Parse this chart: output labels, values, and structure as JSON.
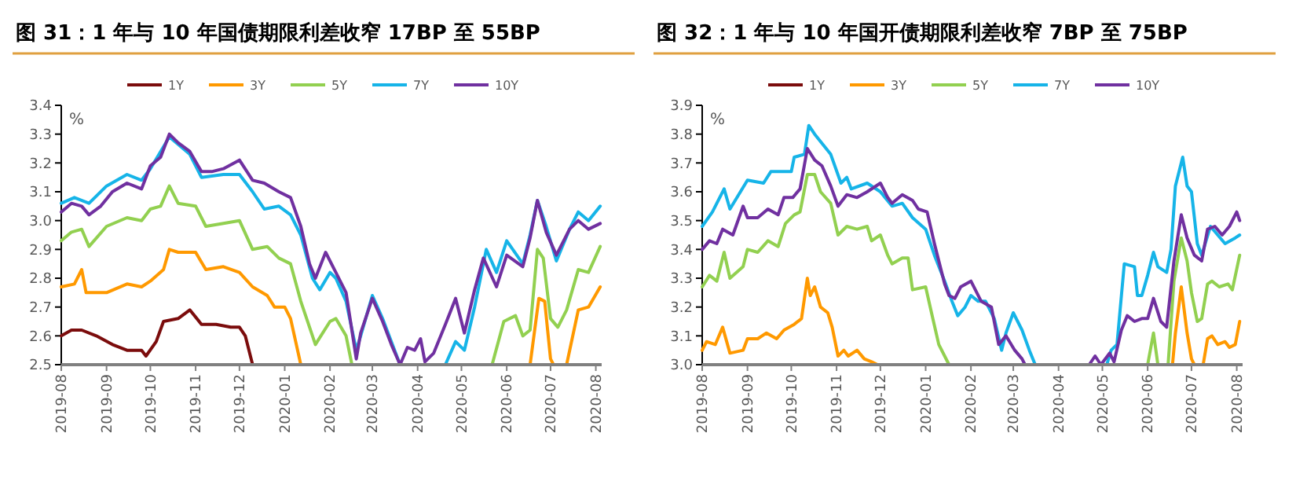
{
  "chart_data": [
    {
      "type": "line",
      "title": "图 31：1 年与 10 年国债期限利差收窄 17BP 至 55BP",
      "ylabel": "%",
      "legend": "top",
      "xlim": [
        "2019-08-01",
        "2020-08-05"
      ],
      "xticks": [
        "2019-08",
        "2019-09",
        "2019-10",
        "2019-11",
        "2019-12",
        "2020-01",
        "2020-02",
        "2020-03",
        "2020-04",
        "2020-05",
        "2020-06",
        "2020-07",
        "2020-08"
      ],
      "ylim": [
        2.5,
        3.4
      ],
      "yticks": [
        2.5,
        2.6,
        2.7,
        2.8,
        2.9,
        {
          "value": 3.0,
          "label": "3.0"
        },
        3.1,
        3.2,
        3.3,
        3.4
      ],
      "series": [
        {
          "name": "1Y",
          "color": "#7b0c0c",
          "x": [
            "2019-08-01",
            "2019-08-08",
            "2019-08-15",
            "2019-08-25",
            "2019-09-05",
            "2019-09-15",
            "2019-09-25",
            "2019-09-28",
            "2019-10-05",
            "2019-10-10",
            "2019-10-20",
            "2019-10-28",
            "2019-11-05",
            "2019-11-15",
            "2019-11-25",
            "2019-12-01",
            "2019-12-05",
            "2019-12-10"
          ],
          "values": [
            2.6,
            2.62,
            2.62,
            2.6,
            2.57,
            2.55,
            2.55,
            2.53,
            2.58,
            2.65,
            2.66,
            2.69,
            2.64,
            2.64,
            2.63,
            2.63,
            2.6,
            2.5
          ]
        },
        {
          "name": "3Y",
          "color": "#ff9900",
          "x": [
            "2019-08-01",
            "2019-08-10",
            "2019-08-15",
            "2019-08-18",
            "2019-09-01",
            "2019-09-15",
            "2019-09-25",
            "2019-10-01",
            "2019-10-10",
            "2019-10-14",
            "2019-10-20",
            "2019-11-01",
            "2019-11-08",
            "2019-11-20",
            "2019-12-01",
            "2019-12-10",
            "2019-12-20",
            "2019-12-25",
            "2020-01-01",
            "2020-01-05",
            "2020-01-12",
            "2020-03-15",
            "2020-06-17",
            "2020-06-23",
            "2020-06-27",
            "2020-07-01",
            "2020-07-03",
            "2020-07-07",
            "2020-07-12",
            "2020-07-20",
            "2020-07-27",
            "2020-08-04"
          ],
          "values": [
            2.77,
            2.78,
            2.83,
            2.75,
            2.75,
            2.78,
            2.77,
            2.79,
            2.83,
            2.9,
            2.89,
            2.89,
            2.83,
            2.84,
            2.82,
            2.77,
            2.74,
            2.7,
            2.7,
            2.66,
            2.5,
            null,
            2.5,
            2.73,
            2.72,
            2.52,
            2.5,
            null,
            2.5,
            2.69,
            2.7,
            2.77
          ]
        },
        {
          "name": "5Y",
          "color": "#92d050",
          "x": [
            "2019-08-01",
            "2019-08-08",
            "2019-08-15",
            "2019-08-20",
            "2019-09-01",
            "2019-09-15",
            "2019-09-25",
            "2019-10-01",
            "2019-10-08",
            "2019-10-14",
            "2019-10-20",
            "2019-11-01",
            "2019-11-08",
            "2019-11-20",
            "2019-12-01",
            "2019-12-10",
            "2019-12-20",
            "2019-12-28",
            "2020-01-05",
            "2020-01-12",
            "2020-01-22",
            "2020-02-01",
            "2020-02-05",
            "2020-02-12",
            "2020-02-16",
            "2020-04-01",
            "2020-05-22",
            "2020-05-30",
            "2020-06-07",
            "2020-06-12",
            "2020-06-17",
            "2020-06-22",
            "2020-06-26",
            "2020-07-01",
            "2020-07-06",
            "2020-07-12",
            "2020-07-20",
            "2020-07-27",
            "2020-08-04"
          ],
          "values": [
            2.93,
            2.96,
            2.97,
            2.91,
            2.98,
            3.01,
            3.0,
            3.04,
            3.05,
            3.12,
            3.06,
            3.05,
            2.98,
            2.99,
            3.0,
            2.9,
            2.91,
            2.87,
            2.85,
            2.72,
            2.57,
            2.65,
            2.66,
            2.6,
            2.5,
            null,
            2.5,
            2.65,
            2.67,
            2.6,
            2.62,
            2.9,
            2.87,
            2.66,
            2.63,
            2.69,
            2.83,
            2.82,
            2.91
          ]
        },
        {
          "name": "7Y",
          "color": "#16b4e8",
          "x": [
            "2019-08-01",
            "2019-08-10",
            "2019-08-20",
            "2019-09-01",
            "2019-09-15",
            "2019-09-25",
            "2019-10-01",
            "2019-10-14",
            "2019-10-28",
            "2019-11-05",
            "2019-11-20",
            "2019-12-01",
            "2019-12-10",
            "2019-12-18",
            "2019-12-28",
            "2020-01-05",
            "2020-01-12",
            "2020-01-20",
            "2020-01-25",
            "2020-02-01",
            "2020-02-05",
            "2020-02-12",
            "2020-02-19",
            "2020-02-22",
            "2020-03-01",
            "2020-03-08",
            "2020-03-14",
            "2020-03-20",
            "2020-04-05",
            "2020-04-20",
            "2020-04-27",
            "2020-05-03",
            "2020-05-10",
            "2020-05-18",
            "2020-05-25",
            "2020-06-01",
            "2020-06-12",
            "2020-06-17",
            "2020-06-22",
            "2020-06-28",
            "2020-07-05",
            "2020-07-14",
            "2020-07-20",
            "2020-07-27",
            "2020-08-04"
          ],
          "values": [
            3.06,
            3.08,
            3.06,
            3.12,
            3.16,
            3.14,
            3.18,
            3.29,
            3.23,
            3.15,
            3.16,
            3.16,
            3.1,
            3.04,
            3.05,
            3.02,
            2.95,
            2.8,
            2.76,
            2.82,
            2.8,
            2.72,
            2.55,
            2.6,
            2.74,
            2.66,
            2.58,
            2.5,
            null,
            2.5,
            2.58,
            2.55,
            2.7,
            2.9,
            2.82,
            2.93,
            2.85,
            2.95,
            3.07,
            2.98,
            2.86,
            2.97,
            3.03,
            3.0,
            3.05
          ]
        },
        {
          "name": "10Y",
          "color": "#7030a0",
          "x": [
            "2019-08-01",
            "2019-08-08",
            "2019-08-15",
            "2019-08-20",
            "2019-08-28",
            "2019-09-05",
            "2019-09-15",
            "2019-09-25",
            "2019-10-01",
            "2019-10-08",
            "2019-10-14",
            "2019-10-20",
            "2019-10-28",
            "2019-11-05",
            "2019-11-12",
            "2019-11-20",
            "2019-12-01",
            "2019-12-10",
            "2019-12-18",
            "2019-12-28",
            "2020-01-05",
            "2020-01-12",
            "2020-01-18",
            "2020-01-22",
            "2020-01-29",
            "2020-02-05",
            "2020-02-12",
            "2020-02-19",
            "2020-02-22",
            "2020-03-01",
            "2020-03-08",
            "2020-03-14",
            "2020-03-20",
            "2020-03-25",
            "2020-03-30",
            "2020-04-03",
            "2020-04-06",
            "2020-04-12",
            "2020-04-20",
            "2020-04-27",
            "2020-05-03",
            "2020-05-10",
            "2020-05-16",
            "2020-05-25",
            "2020-06-01",
            "2020-06-12",
            "2020-06-17",
            "2020-06-22",
            "2020-06-28",
            "2020-07-05",
            "2020-07-14",
            "2020-07-20",
            "2020-07-27",
            "2020-08-04"
          ],
          "values": [
            3.03,
            3.06,
            3.05,
            3.02,
            3.05,
            3.1,
            3.13,
            3.11,
            3.19,
            3.22,
            3.3,
            3.27,
            3.24,
            3.17,
            3.17,
            3.18,
            3.21,
            3.14,
            3.13,
            3.1,
            3.08,
            2.98,
            2.85,
            2.8,
            2.89,
            2.82,
            2.75,
            2.52,
            2.61,
            2.73,
            2.65,
            2.57,
            2.5,
            2.56,
            2.55,
            2.59,
            2.51,
            2.54,
            2.64,
            2.73,
            2.61,
            2.76,
            2.87,
            2.77,
            2.88,
            2.84,
            2.94,
            3.07,
            2.96,
            2.88,
            2.97,
            3.0,
            2.97,
            2.99
          ]
        }
      ]
    },
    {
      "type": "line",
      "title": "图 32：1 年与 10 年国开债期限利差收窄 7BP 至 75BP",
      "ylabel": "%",
      "legend": "top",
      "xlim": [
        "2019-08-01",
        "2020-08-05"
      ],
      "xticks": [
        "2019-08",
        "2019-09",
        "2019-10",
        "2019-11",
        "2019-12",
        "2020-01",
        "2020-02",
        "2020-03",
        "2020-04",
        "2020-05",
        "2020-06",
        "2020-07",
        "2020-08"
      ],
      "ylim": [
        3.0,
        3.9
      ],
      "yticks": [
        {
          "value": 3.0,
          "label": "3.0"
        },
        3.1,
        3.2,
        3.3,
        3.4,
        3.5,
        3.6,
        3.7,
        3.8,
        3.9
      ],
      "series": [
        {
          "name": "1Y",
          "color": "#7b0c0c"
        },
        {
          "name": "3Y",
          "color": "#ff9900",
          "x": [
            "2019-08-01",
            "2019-08-04",
            "2019-08-10",
            "2019-08-15",
            "2019-08-20",
            "2019-08-29",
            "2019-09-01",
            "2019-09-08",
            "2019-09-14",
            "2019-09-21",
            "2019-09-26",
            "2019-10-03",
            "2019-10-08",
            "2019-10-12",
            "2019-10-14",
            "2019-10-17",
            "2019-10-21",
            "2019-10-26",
            "2019-10-29",
            "2019-11-02",
            "2019-11-06",
            "2019-11-09",
            "2019-11-15",
            "2019-11-20",
            "2019-11-25",
            "2019-11-29",
            "2020-03-01",
            "2020-06-18",
            "2020-06-20",
            "2020-06-24",
            "2020-06-28",
            "2020-07-01",
            "2020-07-03",
            "2020-07-06",
            "2020-07-09",
            "2020-07-12",
            "2020-07-15",
            "2020-07-19",
            "2020-07-24",
            "2020-07-27",
            "2020-07-31",
            "2020-08-03"
          ],
          "values": [
            3.05,
            3.08,
            3.07,
            3.13,
            3.04,
            3.05,
            3.09,
            3.09,
            3.11,
            3.09,
            3.12,
            3.14,
            3.16,
            3.3,
            3.24,
            3.27,
            3.2,
            3.18,
            3.13,
            3.03,
            3.05,
            3.03,
            3.05,
            3.02,
            3.01,
            3.0,
            null,
            3.0,
            3.11,
            3.27,
            3.11,
            3.02,
            3.0,
            null,
            3.0,
            3.09,
            3.1,
            3.07,
            3.08,
            3.06,
            3.07,
            3.15
          ]
        },
        {
          "name": "5Y",
          "color": "#92d050",
          "x": [
            "2019-08-01",
            "2019-08-06",
            "2019-08-11",
            "2019-08-16",
            "2019-08-20",
            "2019-08-29",
            "2019-09-01",
            "2019-09-08",
            "2019-09-15",
            "2019-09-22",
            "2019-09-27",
            "2019-10-03",
            "2019-10-07",
            "2019-10-12",
            "2019-10-17",
            "2019-10-21",
            "2019-10-28",
            "2019-11-02",
            "2019-11-08",
            "2019-11-15",
            "2019-11-22",
            "2019-11-25",
            "2019-12-01",
            "2019-12-06",
            "2019-12-09",
            "2019-12-16",
            "2019-12-20",
            "2019-12-23",
            "2020-01-01",
            "2020-01-05",
            "2020-01-10",
            "2020-01-14",
            "2020-01-17",
            "2020-03-15",
            "2020-06-01",
            "2020-06-05",
            "2020-06-08",
            "2020-06-11",
            "2020-06-15",
            "2020-06-19",
            "2020-06-24",
            "2020-06-28",
            "2020-07-01",
            "2020-07-05",
            "2020-07-08",
            "2020-07-12",
            "2020-07-15",
            "2020-07-20",
            "2020-07-26",
            "2020-07-29",
            "2020-08-03"
          ],
          "values": [
            3.27,
            3.31,
            3.29,
            3.39,
            3.3,
            3.34,
            3.4,
            3.39,
            3.43,
            3.41,
            3.49,
            3.52,
            3.53,
            3.66,
            3.66,
            3.6,
            3.56,
            3.45,
            3.48,
            3.47,
            3.48,
            3.43,
            3.45,
            3.38,
            3.35,
            3.37,
            3.37,
            3.26,
            3.27,
            3.18,
            3.07,
            3.03,
            3.0,
            null,
            3.0,
            3.11,
            3.0,
            null,
            3.0,
            3.29,
            3.44,
            3.36,
            3.25,
            3.15,
            3.16,
            3.28,
            3.29,
            3.27,
            3.28,
            3.26,
            3.38
          ]
        },
        {
          "name": "7Y",
          "color": "#16b4e8",
          "x": [
            "2019-08-01",
            "2019-08-08",
            "2019-08-16",
            "2019-08-20",
            "2019-09-01",
            "2019-09-12",
            "2019-09-17",
            "2019-10-01",
            "2019-10-03",
            "2019-10-10",
            "2019-10-13",
            "2019-10-17",
            "2019-10-28",
            "2019-11-04",
            "2019-11-08",
            "2019-11-11",
            "2019-11-22",
            "2019-12-01",
            "2019-12-09",
            "2019-12-16",
            "2019-12-23",
            "2020-01-01",
            "2020-01-07",
            "2020-01-14",
            "2020-01-19",
            "2020-01-23",
            "2020-01-28",
            "2020-02-01",
            "2020-02-06",
            "2020-02-11",
            "2020-02-17",
            "2020-02-22",
            "2020-02-25",
            "2020-03-01",
            "2020-03-07",
            "2020-03-12",
            "2020-03-16",
            "2020-04-15",
            "2020-05-04",
            "2020-05-07",
            "2020-05-11",
            "2020-05-16",
            "2020-05-23",
            "2020-05-25",
            "2020-05-28",
            "2020-06-01",
            "2020-06-05",
            "2020-06-08",
            "2020-06-14",
            "2020-06-17",
            "2020-06-20",
            "2020-06-25",
            "2020-06-28",
            "2020-07-01",
            "2020-07-05",
            "2020-07-08",
            "2020-07-14",
            "2020-07-19",
            "2020-07-24",
            "2020-07-31",
            "2020-08-03"
          ],
          "values": [
            3.48,
            3.53,
            3.61,
            3.54,
            3.64,
            3.63,
            3.67,
            3.67,
            3.72,
            3.73,
            3.83,
            3.8,
            3.73,
            3.63,
            3.65,
            3.61,
            3.63,
            3.6,
            3.55,
            3.56,
            3.51,
            3.47,
            3.38,
            3.29,
            3.22,
            3.17,
            3.2,
            3.24,
            3.22,
            3.22,
            3.16,
            3.05,
            3.11,
            3.18,
            3.12,
            3.05,
            3.0,
            null,
            3.0,
            3.05,
            3.07,
            3.35,
            3.34,
            3.24,
            3.24,
            3.31,
            3.39,
            3.34,
            3.32,
            3.4,
            3.62,
            3.72,
            3.62,
            3.6,
            3.42,
            3.38,
            3.48,
            3.45,
            3.42,
            3.44,
            3.45
          ]
        },
        {
          "name": "10Y",
          "color": "#7030a0",
          "x": [
            "2019-08-01",
            "2019-08-06",
            "2019-08-11",
            "2019-08-15",
            "2019-08-22",
            "2019-08-29",
            "2019-09-01",
            "2019-09-08",
            "2019-09-15",
            "2019-09-22",
            "2019-09-26",
            "2019-10-02",
            "2019-10-07",
            "2019-10-12",
            "2019-10-17",
            "2019-10-22",
            "2019-10-28",
            "2019-11-02",
            "2019-11-08",
            "2019-11-15",
            "2019-11-22",
            "2019-12-01",
            "2019-12-06",
            "2019-12-09",
            "2019-12-16",
            "2019-12-23",
            "2019-12-27",
            "2020-01-02",
            "2020-01-07",
            "2020-01-14",
            "2020-01-17",
            "2020-01-21",
            "2020-01-25",
            "2020-02-01",
            "2020-02-08",
            "2020-02-15",
            "2020-02-20",
            "2020-02-25",
            "2020-03-02",
            "2020-03-07",
            "2020-03-09",
            "2020-04-15",
            "2020-04-22",
            "2020-04-26",
            "2020-04-30",
            "2020-05-06",
            "2020-05-09",
            "2020-05-14",
            "2020-05-18",
            "2020-05-23",
            "2020-05-28",
            "2020-06-01",
            "2020-06-05",
            "2020-06-10",
            "2020-06-14",
            "2020-06-19",
            "2020-06-24",
            "2020-06-28",
            "2020-07-03",
            "2020-07-08",
            "2020-07-12",
            "2020-07-17",
            "2020-07-22",
            "2020-07-27",
            "2020-08-01",
            "2020-08-03"
          ],
          "values": [
            3.4,
            3.43,
            3.42,
            3.47,
            3.45,
            3.55,
            3.51,
            3.51,
            3.54,
            3.52,
            3.58,
            3.58,
            3.61,
            3.75,
            3.71,
            3.69,
            3.62,
            3.55,
            3.59,
            3.58,
            3.6,
            3.63,
            3.58,
            3.56,
            3.59,
            3.57,
            3.54,
            3.53,
            3.42,
            3.28,
            3.24,
            3.23,
            3.27,
            3.29,
            3.22,
            3.2,
            3.07,
            3.1,
            3.05,
            3.02,
            3.0,
            null,
            3.0,
            3.03,
            3.0,
            3.04,
            3.01,
            3.12,
            3.17,
            3.15,
            3.16,
            3.16,
            3.23,
            3.15,
            3.13,
            3.36,
            3.52,
            3.44,
            3.38,
            3.36,
            3.47,
            3.48,
            3.45,
            3.48,
            3.53,
            3.5
          ]
        }
      ]
    }
  ]
}
